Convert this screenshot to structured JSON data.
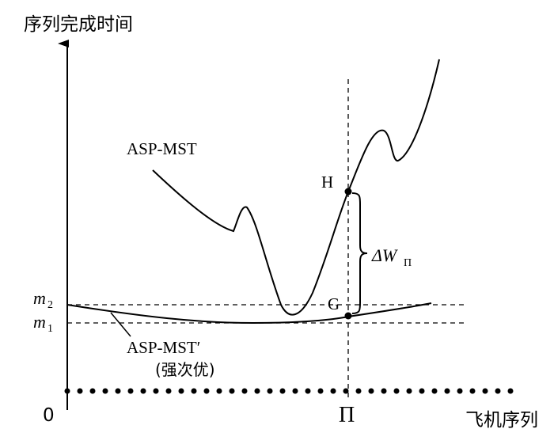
{
  "axes": {
    "y_label": "序列完成时间",
    "x_label": "飞机序列",
    "origin": "0",
    "x_marker": "Π"
  },
  "curves": {
    "upper": "ASP-MST",
    "lower": "ASP-MST′",
    "lower_note": "(强次优)"
  },
  "points": {
    "h": "H",
    "g": "G"
  },
  "gap": {
    "base": "ΔW",
    "sub": "Π"
  },
  "levels": [
    {
      "base": "m",
      "sub": "2"
    },
    {
      "base": "m",
      "sub": "1"
    }
  ]
}
